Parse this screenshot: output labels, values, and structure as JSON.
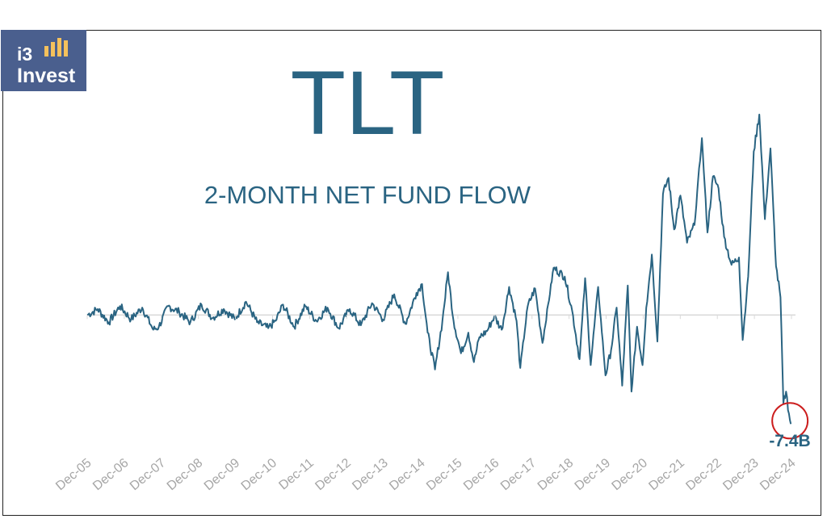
{
  "logo": {
    "line1": "i3",
    "line2": "Invest",
    "bar_color": "#f5c15c",
    "bg_color": "#4a5f8e"
  },
  "chart_data": {
    "type": "line",
    "title": "TLT",
    "subtitle": "2-MONTH NET FUND FLOW",
    "xlabel": "",
    "ylabel": "",
    "units": "USD billions",
    "x_tick_labels": [
      "Dec-05",
      "Dec-06",
      "Dec-07",
      "Dec-08",
      "Dec-09",
      "Dec-10",
      "Dec-11",
      "Dec-12",
      "Dec-13",
      "Dec-14",
      "Dec-15",
      "Dec-16",
      "Dec-17",
      "Dec-18",
      "Dec-19",
      "Dec-20",
      "Dec-21",
      "Dec-22",
      "Dec-23",
      "Dec-24"
    ],
    "xlim": [
      2005.917,
      2024.917
    ],
    "ylim": [
      -9.3,
      14.8
    ],
    "grid": false,
    "zero_line": true,
    "legend": "none",
    "line_color": "#2a6482",
    "series": [
      {
        "x": [
          2005.92,
          2006.2,
          2006.5,
          2006.8,
          2007.1,
          2007.4,
          2007.7,
          2007.85,
          2008.1,
          2008.4,
          2008.7,
          2009.0,
          2009.3,
          2009.6,
          2009.9,
          2010.2,
          2010.5,
          2010.8,
          2011.0,
          2011.2,
          2011.5,
          2011.8,
          2012.1,
          2012.4,
          2012.7,
          2013.0,
          2013.3,
          2013.6,
          2013.9,
          2014.2,
          2014.5,
          2014.8,
          2014.95,
          2015.1,
          2015.3,
          2015.5,
          2015.65,
          2015.8,
          2016.0,
          2016.2,
          2016.35,
          2016.5,
          2016.7,
          2016.9,
          2017.1,
          2017.3,
          2017.5,
          2017.6,
          2017.8,
          2018.0,
          2018.2,
          2018.5,
          2018.8,
          2019.0,
          2019.2,
          2019.35,
          2019.5,
          2019.7,
          2019.9,
          2020.05,
          2020.2,
          2020.35,
          2020.5,
          2020.6,
          2020.75,
          2020.9,
          2021.0,
          2021.15,
          2021.3,
          2021.45,
          2021.6,
          2021.75,
          2021.92,
          2022.1,
          2022.3,
          2022.5,
          2022.65,
          2022.8,
          2022.95,
          2023.1,
          2023.3,
          2023.5,
          2023.6,
          2023.75,
          2023.9,
          2024.05,
          2024.2,
          2024.35,
          2024.5,
          2024.62,
          2024.7,
          2024.77,
          2024.85,
          2024.9
        ],
        "values": [
          0.0,
          0.4,
          -0.5,
          0.6,
          -0.3,
          0.5,
          -1.0,
          -0.8,
          0.6,
          0.2,
          -0.5,
          0.7,
          -0.2,
          0.4,
          -0.3,
          0.9,
          -0.5,
          -0.9,
          -0.4,
          0.7,
          -0.8,
          0.6,
          -0.4,
          0.5,
          -0.9,
          0.4,
          -0.7,
          0.8,
          -0.3,
          1.4,
          -0.6,
          1.5,
          2.1,
          -1.2,
          -3.7,
          -0.4,
          2.9,
          -0.4,
          -2.6,
          -1.2,
          -3.2,
          -1.5,
          -1.1,
          -0.1,
          -1.0,
          1.9,
          -0.4,
          -3.6,
          0.6,
          1.8,
          -1.9,
          3.2,
          2.6,
          0.3,
          -3.0,
          2.5,
          -3.4,
          1.9,
          -4.1,
          -2.4,
          0.5,
          -4.8,
          2.0,
          -5.2,
          -0.8,
          -3.4,
          0.5,
          4.1,
          -1.8,
          8.2,
          9.3,
          5.8,
          8.1,
          4.9,
          6.1,
          12.0,
          5.6,
          9.4,
          8.6,
          5.3,
          3.4,
          3.9,
          -1.7,
          2.6,
          11.1,
          13.6,
          6.5,
          11.3,
          3.3,
          1.2,
          -6.0,
          -5.2,
          -6.7,
          -7.4
        ]
      }
    ],
    "annotations": [
      {
        "label": "-7.4B",
        "x": 2024.92,
        "y": -7.4,
        "marker": "circle",
        "marker_color": "#cc1e1e",
        "label_color": "#2a6482"
      }
    ]
  }
}
